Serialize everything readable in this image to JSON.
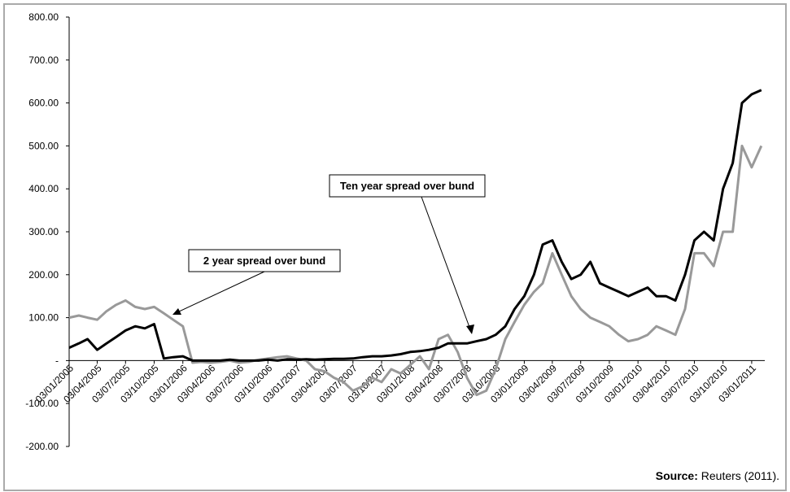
{
  "chart_data": {
    "type": "line",
    "x": [
      "03/01/2005",
      "03/02/2005",
      "03/03/2005",
      "03/04/2005",
      "03/05/2005",
      "03/06/2005",
      "03/07/2005",
      "03/08/2005",
      "03/09/2005",
      "03/10/2005",
      "03/11/2005",
      "03/12/2005",
      "03/01/2006",
      "03/02/2006",
      "03/03/2006",
      "03/04/2006",
      "03/05/2006",
      "03/06/2006",
      "03/07/2006",
      "03/08/2006",
      "03/09/2006",
      "03/10/2006",
      "03/11/2006",
      "03/12/2006",
      "03/01/2007",
      "03/02/2007",
      "03/03/2007",
      "03/04/2007",
      "03/05/2007",
      "03/06/2007",
      "03/07/2007",
      "03/08/2007",
      "03/09/2007",
      "03/10/2007",
      "03/11/2007",
      "03/12/2007",
      "03/01/2008",
      "03/02/2008",
      "03/03/2008",
      "03/04/2008",
      "03/05/2008",
      "03/06/2008",
      "03/07/2008",
      "03/08/2008",
      "03/09/2008",
      "03/10/2008",
      "03/11/2008",
      "03/12/2008",
      "03/01/2009",
      "03/02/2009",
      "03/03/2009",
      "03/04/2009",
      "03/05/2009",
      "03/06/2009",
      "03/07/2009",
      "03/08/2009",
      "03/09/2009",
      "03/10/2009",
      "03/11/2009",
      "03/12/2009",
      "03/01/2010",
      "03/02/2010",
      "03/03/2010",
      "03/04/2010",
      "03/05/2010",
      "03/06/2010",
      "03/07/2010",
      "03/08/2010",
      "03/09/2010",
      "03/10/2010",
      "03/11/2010",
      "03/12/2010",
      "03/01/2011",
      "03/02/2011"
    ],
    "series": [
      {
        "name": "Ten year spread over bund",
        "color": "#000000",
        "values": [
          30,
          40,
          50,
          25,
          40,
          55,
          70,
          80,
          75,
          85,
          5,
          8,
          10,
          0,
          0,
          0,
          0,
          2,
          0,
          0,
          0,
          2,
          0,
          3,
          2,
          3,
          2,
          3,
          4,
          4,
          5,
          8,
          10,
          10,
          12,
          15,
          20,
          22,
          25,
          30,
          40,
          40,
          40,
          45,
          50,
          60,
          80,
          120,
          150,
          200,
          270,
          280,
          230,
          190,
          200,
          230,
          180,
          170,
          160,
          150,
          160,
          170,
          150,
          150,
          140,
          200,
          280,
          300,
          280,
          400,
          460,
          600,
          620,
          630
        ]
      },
      {
        "name": "2 year spread over bund",
        "color": "#999999",
        "values": [
          100,
          105,
          100,
          95,
          115,
          130,
          140,
          125,
          120,
          125,
          110,
          95,
          80,
          -5,
          -3,
          -5,
          -3,
          0,
          -5,
          -3,
          2,
          5,
          8,
          10,
          5,
          0,
          -20,
          -25,
          -40,
          -50,
          -70,
          -60,
          -40,
          -50,
          -20,
          -30,
          -10,
          10,
          -20,
          50,
          60,
          20,
          -40,
          -80,
          -70,
          -20,
          50,
          90,
          130,
          160,
          180,
          250,
          200,
          150,
          120,
          100,
          90,
          80,
          60,
          45,
          50,
          60,
          80,
          70,
          60,
          120,
          250,
          250,
          220,
          300,
          300,
          500,
          450,
          500
        ]
      }
    ],
    "xlim": [
      "03/01/2005",
      "14/02/2011"
    ],
    "xticks": [
      "03/01/2005",
      "03/04/2005",
      "03/07/2005",
      "03/10/2005",
      "03/01/2006",
      "03/04/2006",
      "03/07/2006",
      "03/10/2006",
      "03/01/2007",
      "03/04/2007",
      "03/07/2007",
      "03/10/2007",
      "03/01/2008",
      "03/04/2008",
      "03/07/2008",
      "03/10/2008",
      "03/01/2009",
      "03/04/2009",
      "03/07/2009",
      "03/10/2009",
      "03/01/2010",
      "03/04/2010",
      "03/07/2010",
      "03/10/2010",
      "03/01/2011"
    ],
    "ylim": [
      -200,
      800
    ],
    "yticks": [
      {
        "value": 800,
        "label": "800.00"
      },
      {
        "value": 700,
        "label": "700.00"
      },
      {
        "value": 600,
        "label": "600.00"
      },
      {
        "value": 500,
        "label": "500.00"
      },
      {
        "value": 400,
        "label": "400.00"
      },
      {
        "value": 300,
        "label": "300.00"
      },
      {
        "value": 200,
        "label": "200.00"
      },
      {
        "value": 100,
        "label": "100.00"
      },
      {
        "value": 0,
        "label": "-"
      },
      {
        "value": -100,
        "label": "-100.00"
      },
      {
        "value": -200,
        "label": "-200.00"
      }
    ],
    "grid": false,
    "source_label": "Source:",
    "source_text": "Reuters (2011)."
  }
}
